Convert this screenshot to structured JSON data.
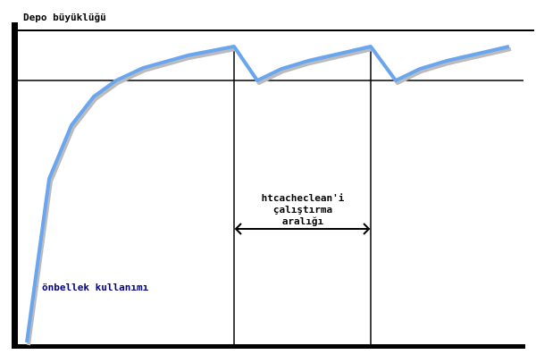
{
  "diagram": {
    "y_axis_label": "Depo büyüklüğü",
    "usage_label": "önbellek kullanımı",
    "interval_label": [
      "htcacheclean'i",
      "çalıştırma",
      "aralığı"
    ],
    "colors": {
      "axis": "#000000",
      "curve": "#6aa6f0",
      "usage_label": "#000080"
    }
  }
}
